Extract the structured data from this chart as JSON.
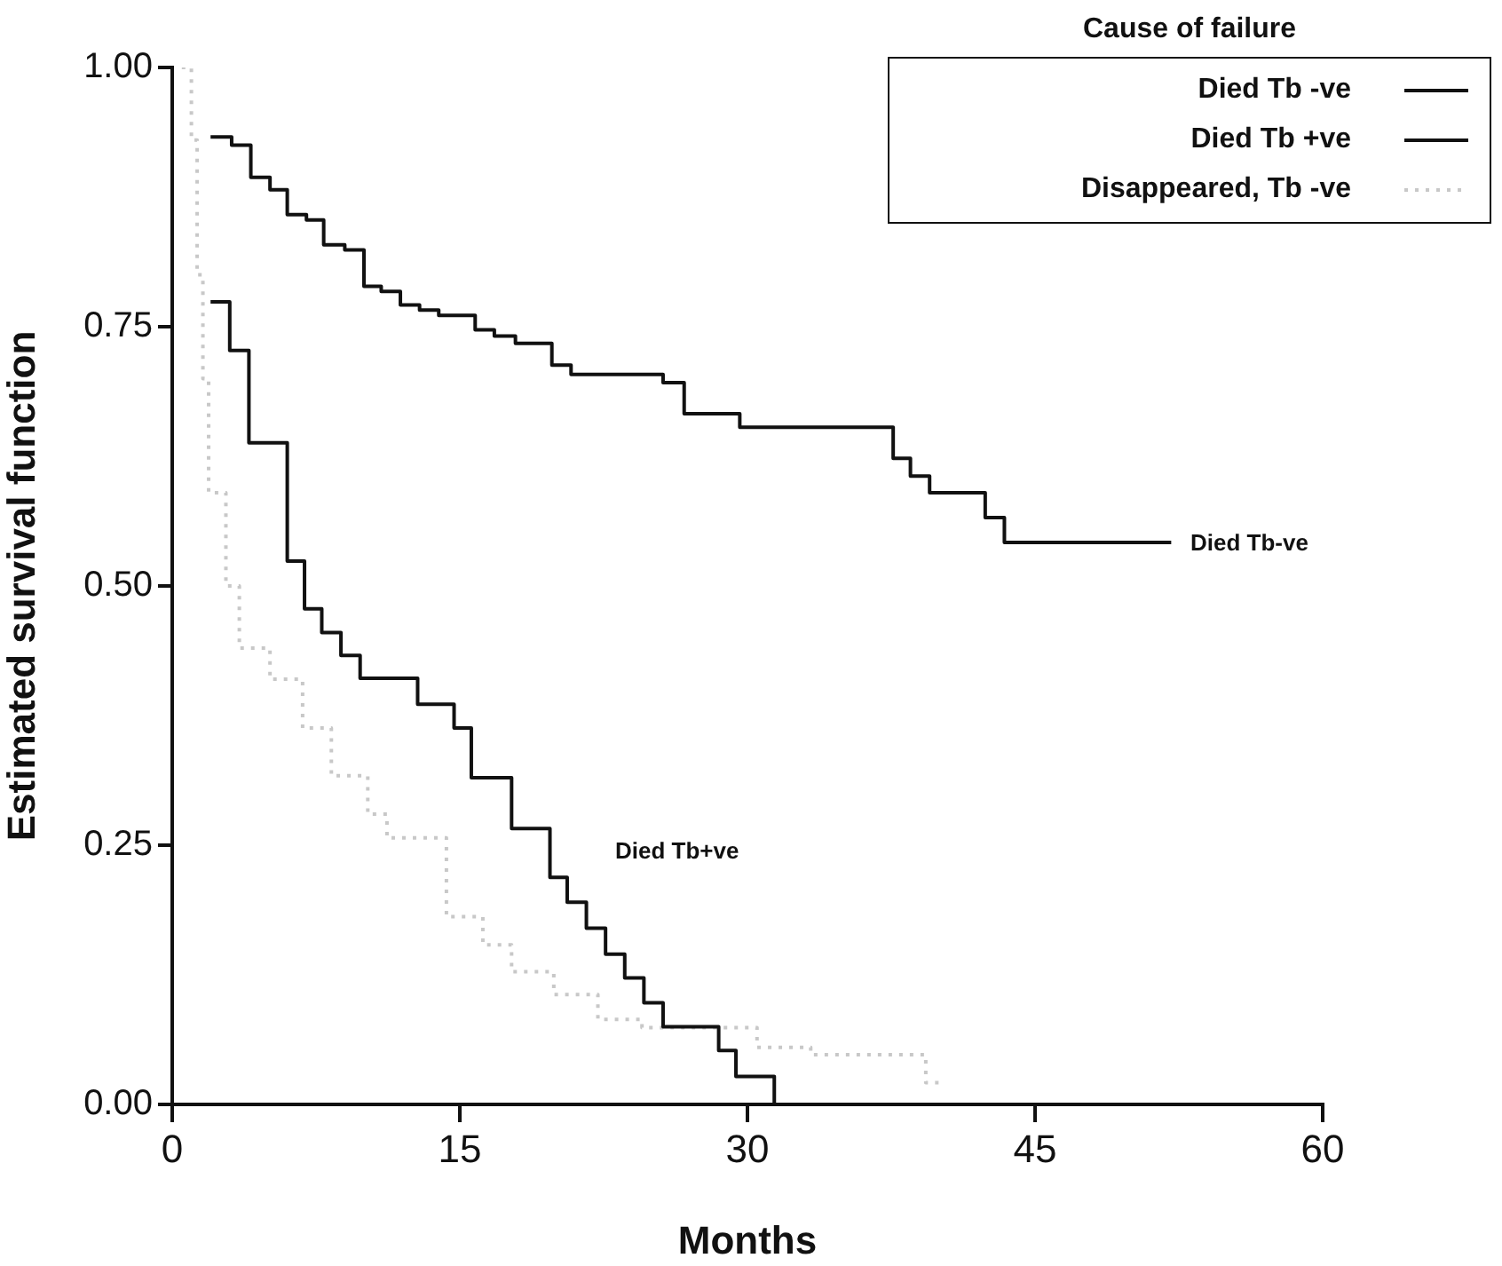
{
  "chart_data": {
    "type": "step",
    "xlabel": "Months",
    "ylabel": "Estimated survival function",
    "legend_title": "Cause of failure",
    "legend": "top right",
    "xlim": [
      0,
      60
    ],
    "ylim": [
      0,
      1
    ],
    "xticks": [
      0,
      15,
      30,
      45,
      60
    ],
    "yticks": [
      {
        "value": 0,
        "label": "0.00"
      },
      {
        "value": 0.25,
        "label": "0.25"
      },
      {
        "value": 0.5,
        "label": "0.50"
      },
      {
        "value": 0.75,
        "label": "0.75"
      },
      {
        "value": 1,
        "label": "1.00"
      }
    ],
    "series": [
      {
        "name": "Died Tb -ve",
        "color": "#111111",
        "line_style": "solid",
        "x": [
          2.0,
          3.1,
          4.1,
          5.1,
          6.0,
          7.0,
          7.9,
          9.0,
          10.0,
          10.9,
          11.9,
          12.9,
          13.9,
          15.8,
          16.8,
          17.9,
          19.8,
          20.8,
          25.6,
          26.7,
          29.6,
          37.6,
          38.5,
          39.5,
          42.4,
          43.4,
          52.1
        ],
        "values": [
          0.933,
          0.925,
          0.894,
          0.882,
          0.858,
          0.853,
          0.829,
          0.824,
          0.789,
          0.784,
          0.771,
          0.766,
          0.761,
          0.747,
          0.741,
          0.734,
          0.713,
          0.704,
          0.696,
          0.666,
          0.653,
          0.623,
          0.606,
          0.59,
          0.566,
          0.542,
          0.542
        ]
      },
      {
        "name": "Died Tb +ve",
        "color": "#111111",
        "line_style": "solid",
        "x": [
          2.0,
          3.0,
          4.0,
          6.0,
          6.9,
          7.8,
          8.8,
          9.8,
          12.8,
          14.7,
          15.6,
          17.7,
          19.7,
          20.6,
          21.6,
          22.6,
          23.6,
          24.6,
          25.6,
          28.5,
          29.4,
          31.4
        ],
        "values": [
          0.774,
          0.727,
          0.638,
          0.524,
          0.478,
          0.455,
          0.433,
          0.411,
          0.386,
          0.363,
          0.315,
          0.266,
          0.219,
          0.195,
          0.17,
          0.145,
          0.122,
          0.098,
          0.075,
          0.052,
          0.027,
          0
        ]
      },
      {
        "name": "Disappeared, Tb -ve",
        "color": "#c8c8c8",
        "line_style": "dotted",
        "x": [
          0.5,
          1.0,
          1.3,
          1.6,
          1.9,
          2.8,
          3.5,
          5.1,
          6.8,
          8.3,
          10.2,
          11.2,
          14.3,
          16.2,
          17.7,
          19.9,
          22.2,
          24.5,
          30.5,
          33.3,
          39.3,
          40.0
        ],
        "values": [
          1.0,
          0.93,
          0.8,
          0.7,
          0.59,
          0.5,
          0.44,
          0.41,
          0.363,
          0.317,
          0.28,
          0.257,
          0.181,
          0.154,
          0.128,
          0.106,
          0.082,
          0.074,
          0.055,
          0.048,
          0.021,
          0.021
        ]
      }
    ],
    "annotations": [
      "Died Tb-ve",
      "Died Tb+ve"
    ]
  }
}
